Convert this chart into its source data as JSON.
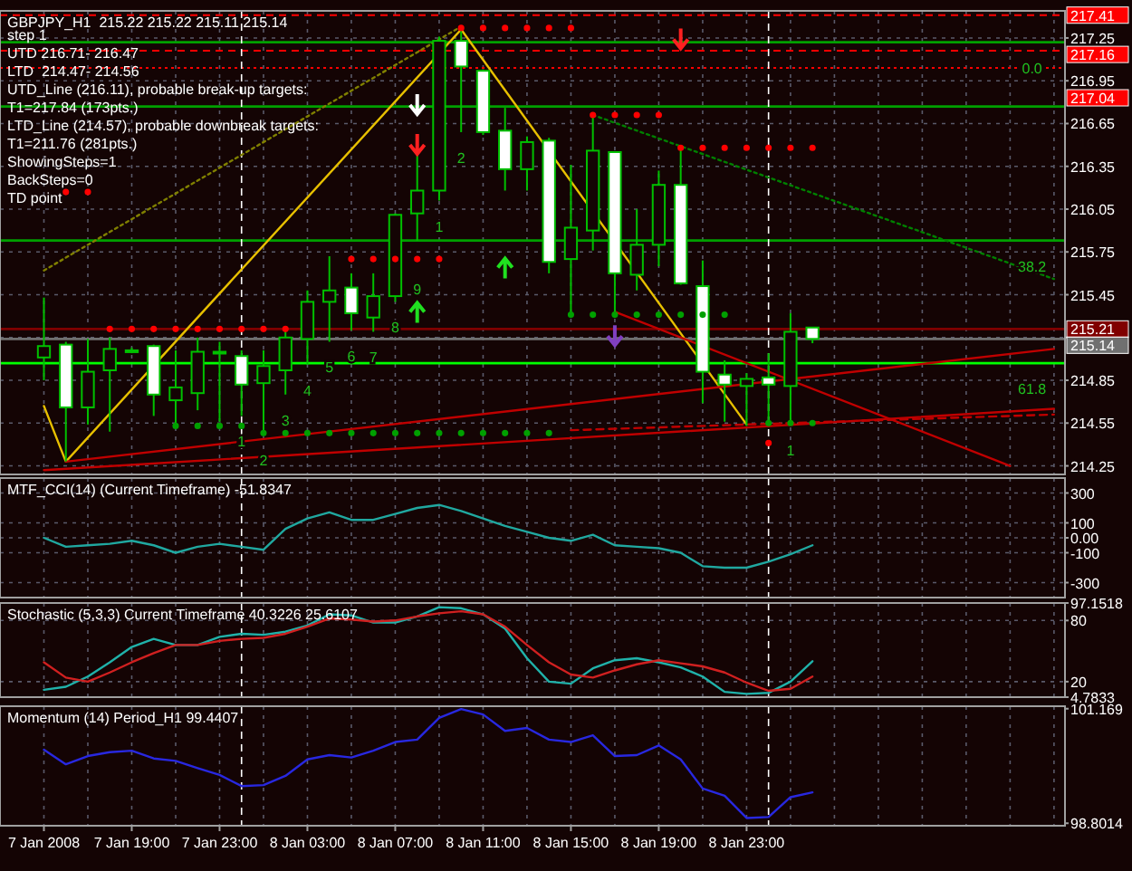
{
  "chart_data": [
    {
      "type": "candlestick",
      "title": "GBPJPY_H1  215.22 215.22 215.11 215.14",
      "annotations": [
        "step 1",
        "UTD 216.71- 216.47",
        "LTD  214.47- 214.56",
        "UTD_Line (216.11), probable break-up targets:",
        "T1=217.84 (173pts.)",
        "LTD_Line (214.57), probable downbreak targets:",
        "T1=211.76 (281pts.)",
        "ShowingSteps=1",
        "BackSteps=0",
        "TD point",
        {
          "text": "1",
          "x": "2008-01-08T00:00",
          "y": 214.6
        },
        {
          "text": "2",
          "x": "2008-01-08T01:00",
          "y": 214.47
        },
        {
          "text": "3",
          "x": "2008-01-08T02:00",
          "y": 214.75
        },
        {
          "text": "4",
          "x": "2008-01-08T03:00",
          "y": 214.96
        },
        {
          "text": "5",
          "x": "2008-01-08T04:00",
          "y": 215.12
        },
        {
          "text": "6",
          "x": "2008-01-08T05:00",
          "y": 215.2
        },
        {
          "text": "7",
          "x": "2008-01-08T06:00",
          "y": 215.19
        },
        {
          "text": "8",
          "x": "2008-01-08T07:00",
          "y": 215.4
        },
        {
          "text": "9",
          "x": "2008-01-08T08:00",
          "y": 215.67
        },
        {
          "text": "1",
          "x": "2008-01-08T09:00",
          "y": 216.11
        },
        {
          "text": "2",
          "x": "2008-01-08T10:00",
          "y": 216.59
        },
        {
          "text": "1",
          "x": "2008-01-09T01:00",
          "y": 214.54
        },
        {
          "text": "0.0",
          "x": "2008-01-09T12:00",
          "y": 217.22
        },
        {
          "text": "38.2",
          "x": "2008-01-09T12:00",
          "y": 215.83
        },
        {
          "text": "61.8",
          "x": "2008-01-09T12:00",
          "y": 214.97
        }
      ],
      "xlim": [
        "2008-01-07T13:00",
        "2008-01-09T13:30"
      ],
      "xticks": [
        {
          "value": "2008-01-07T15:00",
          "label": null
        },
        {
          "value": "2008-01-07T17:00",
          "label": null
        },
        {
          "value": "2008-01-07T19:00",
          "label": null
        },
        {
          "value": "2008-01-07T21:00",
          "label": null
        },
        {
          "value": "2008-01-07T23:00",
          "label": null
        },
        {
          "value": "2008-01-08T01:00",
          "label": null
        },
        {
          "value": "2008-01-08T03:00",
          "label": null
        },
        {
          "value": "2008-01-08T05:00",
          "label": null
        },
        {
          "value": "2008-01-08T07:00",
          "label": null
        },
        {
          "value": "2008-01-08T09:00",
          "label": null
        },
        {
          "value": "2008-01-08T11:00",
          "label": null
        },
        {
          "value": "2008-01-08T13:00",
          "label": null
        },
        {
          "value": "2008-01-08T15:00",
          "label": null
        },
        {
          "value": "2008-01-08T17:00",
          "label": null
        },
        {
          "value": "2008-01-08T19:00",
          "label": null
        },
        {
          "value": "2008-01-08T21:00",
          "label": null
        },
        {
          "value": "2008-01-08T23:00",
          "label": null
        },
        {
          "value": "2008-01-09T01:00",
          "label": null
        },
        {
          "value": "2008-01-09T03:00",
          "label": null
        },
        {
          "value": "2008-01-09T05:00",
          "label": null
        },
        {
          "value": "2008-01-09T07:00",
          "label": null
        },
        {
          "value": "2008-01-09T09:00",
          "label": null
        },
        {
          "value": "2008-01-09T11:00",
          "label": null
        },
        {
          "value": "2008-01-09T13:00",
          "label": null
        }
      ],
      "ylim": [
        214.19,
        217.44
      ],
      "yticks": [
        214.25,
        214.55,
        214.85,
        {
          "value": 215.15,
          "label": null
        },
        215.45,
        215.75,
        216.05,
        216.35,
        216.65,
        216.95,
        217.25
      ],
      "grid": true,
      "tick_labels": "y",
      "ref_lines": [
        {
          "axis": "y",
          "value": 217.41,
          "label": "217.41",
          "color": "#ff0000",
          "line_style": "dashed"
        },
        {
          "axis": "y",
          "value": 217.22,
          "color": "#00a000"
        },
        {
          "axis": "y",
          "value": 217.16,
          "label": "217.16",
          "color": "#ff0000",
          "line_style": "dashed"
        },
        {
          "axis": "y",
          "value": 217.04,
          "label": "217.04",
          "color": "#ff0000",
          "line_style": "dotted"
        },
        {
          "axis": "y",
          "value": 216.77,
          "color": "#00a000"
        },
        {
          "axis": "y",
          "value": 215.83,
          "color": "#00a000"
        },
        {
          "axis": "y",
          "value": 215.21,
          "label": "215.21",
          "color": "#800000"
        },
        {
          "axis": "y",
          "value": 215.14,
          "label": "215.14",
          "color": "#707070"
        },
        {
          "axis": "y",
          "value": 214.97,
          "color": "#00ff00"
        },
        {
          "axis": "x",
          "value": "2008-01-08T00:00",
          "color": "#ffffff",
          "line_style": "dashed"
        },
        {
          "axis": "x",
          "value": "2008-01-09T00:00",
          "color": "#ffffff",
          "line_style": "dashed"
        }
      ],
      "series": [
        {
          "type": "line",
          "color": "#e8c000",
          "x": [
            "2008-01-07T15:00",
            "2008-01-07T16:00",
            "2008-01-08T10:00",
            "2008-01-08T23:00"
          ],
          "values": [
            214.67,
            214.28,
            217.31,
            214.54
          ]
        },
        {
          "type": "line",
          "color": "#c00000",
          "x": [
            "2008-01-07T15:00",
            "2008-01-09T13:00"
          ],
          "values": [
            214.22,
            214.65
          ]
        },
        {
          "type": "line",
          "color": "#c00000",
          "x": [
            "2008-01-07T16:00",
            "2008-01-09T13:00"
          ],
          "values": [
            214.28,
            215.07
          ]
        },
        {
          "type": "line",
          "color": "#c00000",
          "x": [
            "2008-01-08T17:00",
            "2008-01-09T11:00"
          ],
          "values": [
            215.33,
            214.25
          ]
        },
        {
          "type": "line",
          "color": "#c00000",
          "line_style": "dashed",
          "x": [
            "2008-01-08T15:00",
            "2008-01-09T13:00"
          ],
          "values": [
            214.5,
            214.61
          ]
        },
        {
          "type": "line",
          "color": "#808000",
          "line_style": "dotted",
          "x": [
            "2008-01-07T15:00",
            "2008-01-08T10:00"
          ],
          "values": [
            215.62,
            217.33
          ]
        },
        {
          "type": "line",
          "color": "#008000",
          "line_style": "dotted",
          "x": [
            "2008-01-08T16:00",
            "2008-01-09T13:00"
          ],
          "values": [
            216.71,
            215.56
          ]
        },
        {
          "type": "scatter",
          "color": "#ff0000",
          "marker": "circle",
          "x": [
            "2008-01-07T16:00",
            "2008-01-07T17:00",
            "2008-01-07T18:00",
            "2008-01-07T19:00",
            "2008-01-07T20:00",
            "2008-01-07T21:00",
            "2008-01-07T22:00",
            "2008-01-07T23:00",
            "2008-01-08T00:00",
            "2008-01-08T01:00",
            "2008-01-08T02:00",
            "2008-01-08T05:00",
            "2008-01-08T06:00",
            "2008-01-08T07:00",
            "2008-01-08T08:00",
            "2008-01-08T09:00",
            "2008-01-08T10:00",
            "2008-01-08T11:00",
            "2008-01-08T12:00",
            "2008-01-08T13:00",
            "2008-01-08T14:00",
            "2008-01-08T15:00",
            "2008-01-08T16:00",
            "2008-01-08T17:00",
            "2008-01-08T18:00",
            "2008-01-08T19:00",
            "2008-01-08T20:00",
            "2008-01-08T21:00",
            "2008-01-08T22:00",
            "2008-01-08T23:00",
            "2008-01-09T00:00",
            "2008-01-09T01:00",
            "2008-01-09T02:00",
            "2008-01-09T00:00"
          ],
          "values": [
            216.17,
            216.17,
            215.21,
            215.21,
            215.21,
            215.21,
            215.21,
            215.21,
            215.21,
            215.21,
            215.21,
            215.7,
            215.7,
            215.7,
            215.7,
            215.7,
            217.32,
            217.32,
            217.32,
            217.32,
            217.32,
            217.32,
            216.71,
            216.71,
            216.71,
            216.71,
            216.48,
            216.48,
            216.48,
            216.48,
            216.48,
            216.48,
            216.48,
            214.41
          ]
        },
        {
          "type": "scatter",
          "color": "#00a000",
          "marker": "circle",
          "x": [
            "2008-01-07T21:00",
            "2008-01-07T22:00",
            "2008-01-07T23:00",
            "2008-01-08T00:00",
            "2008-01-08T01:00",
            "2008-01-08T02:00",
            "2008-01-08T03:00",
            "2008-01-08T04:00",
            "2008-01-08T05:00",
            "2008-01-08T06:00",
            "2008-01-08T07:00",
            "2008-01-08T08:00",
            "2008-01-08T09:00",
            "2008-01-08T10:00",
            "2008-01-08T11:00",
            "2008-01-08T12:00",
            "2008-01-08T13:00",
            "2008-01-08T14:00",
            "2008-01-08T15:00",
            "2008-01-08T16:00",
            "2008-01-08T17:00",
            "2008-01-08T18:00",
            "2008-01-08T19:00",
            "2008-01-08T20:00",
            "2008-01-08T21:00",
            "2008-01-08T22:00",
            "2008-01-09T00:00",
            "2008-01-09T01:00",
            "2008-01-09T02:00"
          ],
          "values": [
            214.53,
            214.53,
            214.53,
            214.53,
            214.48,
            214.48,
            214.48,
            214.48,
            214.48,
            214.48,
            214.48,
            214.48,
            214.48,
            214.48,
            214.48,
            214.48,
            214.48,
            214.48,
            215.31,
            215.31,
            215.31,
            215.31,
            215.31,
            215.31,
            215.31,
            215.31,
            214.55,
            214.55,
            214.55
          ]
        },
        {
          "color": "#00c000",
          "x": [
            "2008-01-07T15:00",
            "2008-01-07T16:00",
            "2008-01-07T17:00",
            "2008-01-07T18:00",
            "2008-01-07T19:00",
            "2008-01-07T20:00",
            "2008-01-07T21:00",
            "2008-01-07T22:00",
            "2008-01-07T23:00",
            "2008-01-08T00:00",
            "2008-01-08T01:00",
            "2008-01-08T02:00",
            "2008-01-08T03:00",
            "2008-01-08T04:00",
            "2008-01-08T05:00",
            "2008-01-08T06:00",
            "2008-01-08T07:00",
            "2008-01-08T08:00",
            "2008-01-08T09:00",
            "2008-01-08T10:00",
            "2008-01-08T11:00",
            "2008-01-08T12:00",
            "2008-01-08T13:00",
            "2008-01-08T14:00",
            "2008-01-08T15:00",
            "2008-01-08T16:00",
            "2008-01-08T17:00",
            "2008-01-08T18:00",
            "2008-01-08T19:00",
            "2008-01-08T20:00",
            "2008-01-08T21:00",
            "2008-01-08T22:00",
            "2008-01-08T23:00",
            "2008-01-09T00:00",
            "2008-01-09T01:00",
            "2008-01-09T02:00"
          ],
          "ohlc": [
            [
              215.01,
              215.43,
              214.85,
              215.09
            ],
            [
              215.1,
              215.12,
              214.28,
              214.66
            ],
            [
              214.66,
              215.14,
              214.54,
              214.91
            ],
            [
              214.92,
              215.15,
              214.49,
              215.07
            ],
            [
              215.06,
              215.08,
              215.04,
              215.05
            ],
            [
              215.09,
              215.1,
              214.6,
              214.75
            ],
            [
              214.71,
              215.06,
              214.53,
              214.8
            ],
            [
              214.76,
              215.15,
              214.64,
              215.05
            ],
            [
              215.05,
              215.12,
              214.56,
              215.04
            ],
            [
              215.02,
              215.06,
              214.6,
              214.82
            ],
            [
              214.83,
              215.06,
              214.47,
              214.95
            ],
            [
              214.92,
              215.22,
              214.75,
              215.15
            ],
            [
              215.14,
              215.48,
              214.96,
              215.4
            ],
            [
              215.4,
              215.72,
              215.12,
              215.48
            ],
            [
              215.5,
              215.6,
              215.2,
              215.32
            ],
            [
              215.29,
              215.6,
              215.19,
              215.44
            ],
            [
              215.44,
              216.02,
              215.4,
              216.01
            ],
            [
              216.02,
              216.43,
              215.83,
              216.18
            ],
            [
              216.18,
              217.26,
              216.11,
              217.23
            ],
            [
              217.23,
              217.31,
              216.59,
              217.05
            ],
            [
              217.02,
              217.03,
              216.57,
              216.59
            ],
            [
              216.6,
              216.76,
              216.18,
              216.33
            ],
            [
              216.33,
              216.56,
              216.18,
              216.52
            ],
            [
              216.53,
              216.55,
              215.6,
              215.68
            ],
            [
              215.7,
              216.36,
              215.32,
              215.92
            ],
            [
              215.9,
              216.72,
              215.76,
              216.46
            ],
            [
              216.45,
              216.45,
              215.33,
              215.6
            ],
            [
              215.59,
              216.05,
              215.48,
              215.8
            ],
            [
              215.8,
              216.32,
              215.65,
              216.22
            ],
            [
              216.22,
              216.47,
              215.52,
              215.53
            ],
            [
              215.51,
              215.69,
              214.69,
              214.91
            ],
            [
              214.89,
              214.99,
              214.56,
              214.82
            ],
            [
              214.81,
              214.9,
              214.53,
              214.86
            ],
            [
              214.87,
              215.04,
              214.53,
              214.82
            ],
            [
              214.81,
              215.32,
              214.54,
              215.19
            ],
            [
              215.22,
              215.22,
              215.11,
              215.14
            ]
          ]
        }
      ]
    },
    {
      "type": "line",
      "title": "MTF_CCI(14) (Current Timeframe) -51.8347",
      "xlim": [
        "2008-01-07T13:00",
        "2008-01-09T13:30"
      ],
      "xticks": [
        {
          "value": "2008-01-07T15:00",
          "label": null
        },
        {
          "value": "2008-01-07T17:00",
          "label": null
        },
        {
          "value": "2008-01-07T19:00",
          "label": null
        },
        {
          "value": "2008-01-07T21:00",
          "label": null
        },
        {
          "value": "2008-01-07T23:00",
          "label": null
        },
        {
          "value": "2008-01-08T01:00",
          "label": null
        },
        {
          "value": "2008-01-08T03:00",
          "label": null
        },
        {
          "value": "2008-01-08T05:00",
          "label": null
        },
        {
          "value": "2008-01-08T07:00",
          "label": null
        },
        {
          "value": "2008-01-08T09:00",
          "label": null
        },
        {
          "value": "2008-01-08T11:00",
          "label": null
        },
        {
          "value": "2008-01-08T13:00",
          "label": null
        },
        {
          "value": "2008-01-08T15:00",
          "label": null
        },
        {
          "value": "2008-01-08T17:00",
          "label": null
        },
        {
          "value": "2008-01-08T19:00",
          "label": null
        },
        {
          "value": "2008-01-08T21:00",
          "label": null
        },
        {
          "value": "2008-01-08T23:00",
          "label": null
        },
        {
          "value": "2008-01-09T01:00",
          "label": null
        },
        {
          "value": "2008-01-09T03:00",
          "label": null
        },
        {
          "value": "2008-01-09T05:00",
          "label": null
        },
        {
          "value": "2008-01-09T07:00",
          "label": null
        },
        {
          "value": "2008-01-09T09:00",
          "label": null
        },
        {
          "value": "2008-01-09T11:00",
          "label": null
        },
        {
          "value": "2008-01-09T13:00",
          "label": null
        }
      ],
      "ylim": [
        -400,
        400
      ],
      "yticks": [
        300,
        100,
        {
          "value": 0,
          "label": "0.00"
        },
        -100,
        -300
      ],
      "grid": true,
      "tick_labels": "y",
      "ref_lines": [
        {
          "axis": "x",
          "value": "2008-01-08T00:00",
          "color": "#ffffff",
          "line_style": "dashed"
        },
        {
          "axis": "x",
          "value": "2008-01-09T00:00",
          "color": "#ffffff",
          "line_style": "dashed"
        }
      ],
      "series": [
        {
          "color": "#20a8a0",
          "x": [
            "2008-01-07T15:00",
            "2008-01-07T16:00",
            "2008-01-07T17:00",
            "2008-01-07T18:00",
            "2008-01-07T19:00",
            "2008-01-07T20:00",
            "2008-01-07T21:00",
            "2008-01-07T22:00",
            "2008-01-07T23:00",
            "2008-01-08T00:00",
            "2008-01-08T01:00",
            "2008-01-08T02:00",
            "2008-01-08T03:00",
            "2008-01-08T04:00",
            "2008-01-08T05:00",
            "2008-01-08T06:00",
            "2008-01-08T07:00",
            "2008-01-08T08:00",
            "2008-01-08T09:00",
            "2008-01-08T10:00",
            "2008-01-08T11:00",
            "2008-01-08T12:00",
            "2008-01-08T13:00",
            "2008-01-08T14:00",
            "2008-01-08T15:00",
            "2008-01-08T16:00",
            "2008-01-08T17:00",
            "2008-01-08T18:00",
            "2008-01-08T19:00",
            "2008-01-08T20:00",
            "2008-01-08T21:00",
            "2008-01-08T22:00",
            "2008-01-08T23:00",
            "2008-01-09T00:00",
            "2008-01-09T01:00",
            "2008-01-09T02:00"
          ],
          "values": [
            0,
            -60,
            -50,
            -40,
            -20,
            -50,
            -100,
            -60,
            -40,
            -60,
            -80,
            60,
            130,
            170,
            120,
            120,
            160,
            200,
            220,
            180,
            130,
            80,
            40,
            0,
            -20,
            20,
            -50,
            -60,
            -70,
            -100,
            -190,
            -200,
            -200,
            -160,
            -110,
            -50
          ]
        }
      ]
    },
    {
      "type": "line",
      "title": "Stochastic (5,3,3) Current Timeframe 40.3226 25.6107",
      "xlim": [
        "2008-01-07T13:00",
        "2008-01-09T13:30"
      ],
      "xticks": [
        {
          "value": "2008-01-07T15:00",
          "label": null
        },
        {
          "value": "2008-01-07T17:00",
          "label": null
        },
        {
          "value": "2008-01-07T19:00",
          "label": null
        },
        {
          "value": "2008-01-07T21:00",
          "label": null
        },
        {
          "value": "2008-01-07T23:00",
          "label": null
        },
        {
          "value": "2008-01-08T01:00",
          "label": null
        },
        {
          "value": "2008-01-08T03:00",
          "label": null
        },
        {
          "value": "2008-01-08T05:00",
          "label": null
        },
        {
          "value": "2008-01-08T07:00",
          "label": null
        },
        {
          "value": "2008-01-08T09:00",
          "label": null
        },
        {
          "value": "2008-01-08T11:00",
          "label": null
        },
        {
          "value": "2008-01-08T13:00",
          "label": null
        },
        {
          "value": "2008-01-08T15:00",
          "label": null
        },
        {
          "value": "2008-01-08T17:00",
          "label": null
        },
        {
          "value": "2008-01-08T19:00",
          "label": null
        },
        {
          "value": "2008-01-08T21:00",
          "label": null
        },
        {
          "value": "2008-01-08T23:00",
          "label": null
        },
        {
          "value": "2008-01-09T01:00",
          "label": null
        },
        {
          "value": "2008-01-09T03:00",
          "label": null
        },
        {
          "value": "2008-01-09T05:00",
          "label": null
        },
        {
          "value": "2008-01-09T07:00",
          "label": null
        },
        {
          "value": "2008-01-09T09:00",
          "label": null
        },
        {
          "value": "2008-01-09T11:00",
          "label": null
        },
        {
          "value": "2008-01-09T13:00",
          "label": null
        }
      ],
      "ylim": [
        4.7833,
        97.1518
      ],
      "yticks": [
        4.7833,
        20,
        80,
        97.1518
      ],
      "grid": true,
      "tick_labels": "y",
      "ref_lines": [
        {
          "axis": "x",
          "value": "2008-01-08T00:00",
          "color": "#ffffff",
          "line_style": "dashed"
        },
        {
          "axis": "x",
          "value": "2008-01-09T00:00",
          "color": "#ffffff",
          "line_style": "dashed"
        }
      ],
      "series": [
        {
          "color": "#20b2aa",
          "x": [
            "2008-01-07T15:00",
            "2008-01-07T16:00",
            "2008-01-07T17:00",
            "2008-01-07T18:00",
            "2008-01-07T19:00",
            "2008-01-07T20:00",
            "2008-01-07T21:00",
            "2008-01-07T22:00",
            "2008-01-07T23:00",
            "2008-01-08T00:00",
            "2008-01-08T01:00",
            "2008-01-08T02:00",
            "2008-01-08T03:00",
            "2008-01-08T04:00",
            "2008-01-08T05:00",
            "2008-01-08T06:00",
            "2008-01-08T07:00",
            "2008-01-08T08:00",
            "2008-01-08T09:00",
            "2008-01-08T10:00",
            "2008-01-08T11:00",
            "2008-01-08T12:00",
            "2008-01-08T13:00",
            "2008-01-08T14:00",
            "2008-01-08T15:00",
            "2008-01-08T16:00",
            "2008-01-08T17:00",
            "2008-01-08T18:00",
            "2008-01-08T19:00",
            "2008-01-08T20:00",
            "2008-01-08T21:00",
            "2008-01-08T22:00",
            "2008-01-08T23:00",
            "2008-01-09T00:00",
            "2008-01-09T01:00",
            "2008-01-09T02:00"
          ],
          "values": [
            12,
            15,
            25,
            39,
            54,
            62,
            56,
            56,
            64,
            67,
            66,
            69,
            75,
            86,
            85,
            78,
            78,
            84,
            93,
            92,
            86,
            72,
            43,
            20,
            18,
            33,
            41,
            43,
            39,
            34,
            25,
            10,
            8,
            9,
            20,
            40
          ]
        },
        {
          "color": "#d02020",
          "x": [
            "2008-01-07T15:00",
            "2008-01-07T16:00",
            "2008-01-07T17:00",
            "2008-01-07T18:00",
            "2008-01-07T19:00",
            "2008-01-07T20:00",
            "2008-01-07T21:00",
            "2008-01-07T22:00",
            "2008-01-07T23:00",
            "2008-01-08T00:00",
            "2008-01-08T01:00",
            "2008-01-08T02:00",
            "2008-01-08T03:00",
            "2008-01-08T04:00",
            "2008-01-08T05:00",
            "2008-01-08T06:00",
            "2008-01-08T07:00",
            "2008-01-08T08:00",
            "2008-01-08T09:00",
            "2008-01-08T10:00",
            "2008-01-08T11:00",
            "2008-01-08T12:00",
            "2008-01-08T13:00",
            "2008-01-08T14:00",
            "2008-01-08T15:00",
            "2008-01-08T16:00",
            "2008-01-08T17:00",
            "2008-01-08T18:00",
            "2008-01-08T19:00",
            "2008-01-08T20:00",
            "2008-01-08T21:00",
            "2008-01-08T22:00",
            "2008-01-08T23:00",
            "2008-01-09T00:00",
            "2008-01-09T01:00",
            "2008-01-09T02:00"
          ],
          "values": [
            39,
            24,
            20,
            29,
            39,
            48,
            56,
            56,
            60,
            62,
            63,
            67,
            74,
            82,
            81,
            79,
            80,
            84,
            87,
            89,
            86,
            74,
            56,
            39,
            27,
            24,
            31,
            37,
            41,
            38,
            35,
            29,
            19,
            11,
            13,
            25
          ]
        }
      ]
    },
    {
      "type": "line",
      "title": "Momentum (14) Period_H1 99.4407",
      "xlim": [
        "2008-01-07T13:00",
        "2008-01-09T13:30"
      ],
      "xticks": [
        {
          "value": "2008-01-07T15:00",
          "label": "7 Jan 2008"
        },
        {
          "value": "2008-01-07T17:00",
          "label": null
        },
        {
          "value": "2008-01-07T19:00",
          "label": "7 Jan 19:00"
        },
        {
          "value": "2008-01-07T21:00",
          "label": null
        },
        {
          "value": "2008-01-07T23:00",
          "label": "7 Jan 23:00"
        },
        {
          "value": "2008-01-08T01:00",
          "label": null
        },
        {
          "value": "2008-01-08T03:00",
          "label": "8 Jan 03:00"
        },
        {
          "value": "2008-01-08T05:00",
          "label": null
        },
        {
          "value": "2008-01-08T07:00",
          "label": "8 Jan 07:00"
        },
        {
          "value": "2008-01-08T09:00",
          "label": null
        },
        {
          "value": "2008-01-08T11:00",
          "label": "8 Jan 11:00"
        },
        {
          "value": "2008-01-08T13:00",
          "label": null
        },
        {
          "value": "2008-01-08T15:00",
          "label": "8 Jan 15:00"
        },
        {
          "value": "2008-01-08T17:00",
          "label": null
        },
        {
          "value": "2008-01-08T19:00",
          "label": "8 Jan 19:00"
        },
        {
          "value": "2008-01-08T21:00",
          "label": null
        },
        {
          "value": "2008-01-08T23:00",
          "label": "8 Jan 23:00"
        },
        {
          "value": "2008-01-09T01:00",
          "label": null
        },
        {
          "value": "2008-01-09T03:00",
          "label": null
        },
        {
          "value": "2008-01-09T05:00",
          "label": null
        },
        {
          "value": "2008-01-09T07:00",
          "label": null
        },
        {
          "value": "2008-01-09T09:00",
          "label": null
        },
        {
          "value": "2008-01-09T11:00",
          "label": null
        },
        {
          "value": "2008-01-09T13:00",
          "label": null
        }
      ],
      "ylim": [
        98.75,
        101.22
      ],
      "yticks": [
        98.8014,
        101.169
      ],
      "grid": "x",
      "ref_lines": [
        {
          "axis": "x",
          "value": "2008-01-08T00:00",
          "color": "#ffffff",
          "line_style": "dashed"
        },
        {
          "axis": "x",
          "value": "2008-01-09T00:00",
          "color": "#ffffff",
          "line_style": "dashed"
        }
      ],
      "series": [
        {
          "color": "#2828e0",
          "x": [
            "2008-01-07T15:00",
            "2008-01-07T16:00",
            "2008-01-07T17:00",
            "2008-01-07T18:00",
            "2008-01-07T19:00",
            "2008-01-07T20:00",
            "2008-01-07T21:00",
            "2008-01-07T22:00",
            "2008-01-07T23:00",
            "2008-01-08T00:00",
            "2008-01-08T01:00",
            "2008-01-08T02:00",
            "2008-01-08T03:00",
            "2008-01-08T04:00",
            "2008-01-08T05:00",
            "2008-01-08T06:00",
            "2008-01-08T07:00",
            "2008-01-08T08:00",
            "2008-01-08T09:00",
            "2008-01-08T10:00",
            "2008-01-08T11:00",
            "2008-01-08T12:00",
            "2008-01-08T13:00",
            "2008-01-08T14:00",
            "2008-01-08T15:00",
            "2008-01-08T16:00",
            "2008-01-08T17:00",
            "2008-01-08T18:00",
            "2008-01-08T19:00",
            "2008-01-08T20:00",
            "2008-01-08T21:00",
            "2008-01-08T22:00",
            "2008-01-08T23:00",
            "2008-01-09T00:00",
            "2008-01-09T01:00",
            "2008-01-09T02:00"
          ],
          "values": [
            100.32,
            100.02,
            100.19,
            100.27,
            100.3,
            100.14,
            100.09,
            99.94,
            99.8,
            99.57,
            99.59,
            99.78,
            100.12,
            100.21,
            100.16,
            100.3,
            100.48,
            100.53,
            100.98,
            101.16,
            101.05,
            100.71,
            100.77,
            100.53,
            100.48,
            100.62,
            100.19,
            100.21,
            100.41,
            100.12,
            99.52,
            99.37,
            98.91,
            98.93,
            99.34,
            99.44
          ]
        }
      ]
    }
  ]
}
